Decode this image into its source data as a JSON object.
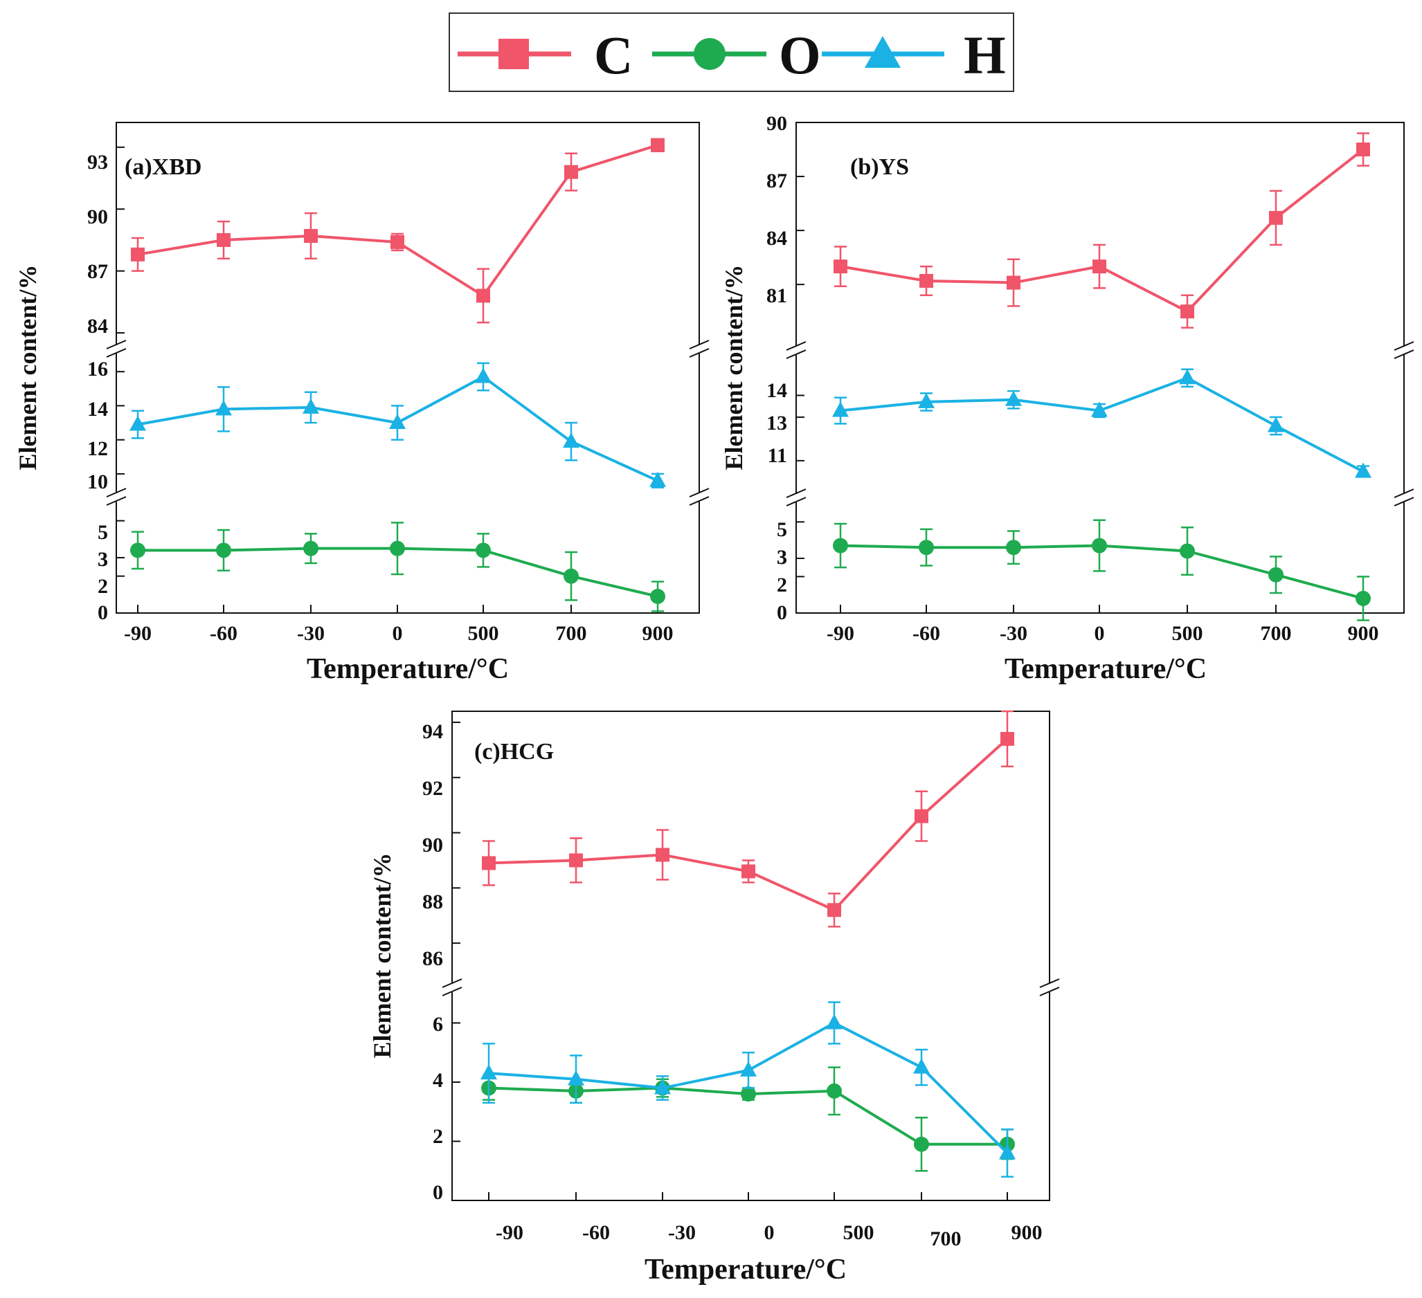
{
  "colors": {
    "C": "#f0556a",
    "O": "#1eab4f",
    "H": "#1ab2e4",
    "axis": "#111111"
  },
  "legend": [
    {
      "key": "C",
      "label": "C",
      "marker": "square-marker"
    },
    {
      "key": "O",
      "label": "O",
      "marker": "circle-marker"
    },
    {
      "key": "H",
      "label": "H",
      "marker": "triangle-marker"
    }
  ],
  "chart_data": [
    {
      "type": "line",
      "title": "(a)XBD",
      "xlabel": "Temperature/°C",
      "ylabel": "Element content/%",
      "categories": [
        "-90",
        "-60",
        "-30",
        "0",
        "500",
        "700",
        "900"
      ],
      "segments": [
        {
          "ylim": [
            83.5,
            94.2
          ],
          "ticks": [
            "84",
            "87",
            "90",
            "93"
          ]
        },
        {
          "ylim": [
            8.9,
            16.9
          ],
          "ticks": [
            "10",
            "12",
            "14",
            "16"
          ]
        },
        {
          "ylim": [
            0,
            6
          ],
          "ticks": [
            "0",
            "2",
            "3",
            "3",
            "5"
          ]
        }
      ],
      "series": [
        {
          "name": "C",
          "segment": 0,
          "values": [
            87.8,
            88.5,
            88.7,
            88.4,
            85.8,
            91.8,
            93.1
          ],
          "errors": [
            0.8,
            0.9,
            1.1,
            0.4,
            1.3,
            0.9,
            0.3
          ]
        },
        {
          "name": "O",
          "segment": 2,
          "values": [
            3.4,
            3.4,
            3.5,
            3.5,
            3.4,
            2.0,
            0.9
          ],
          "errors": [
            1.0,
            1.1,
            0.8,
            1.4,
            0.9,
            1.3,
            0.8
          ]
        },
        {
          "name": "H",
          "segment": 1,
          "values": [
            12.9,
            13.8,
            13.9,
            13.0,
            15.7,
            11.9,
            9.6
          ],
          "errors": [
            0.8,
            1.3,
            0.9,
            1.0,
            0.8,
            1.1,
            0.4
          ]
        }
      ]
    },
    {
      "type": "line",
      "title": "(b)YS",
      "xlabel": "Temperature/°C",
      "ylabel": "Element content/%",
      "categories": [
        "-90",
        "-60",
        "-30",
        "0",
        "500",
        "700",
        "900"
      ],
      "segments": [
        {
          "ylim": [
            77.7,
            90.0
          ],
          "ticks": [
            "81",
            "84",
            "87",
            "90"
          ]
        },
        {
          "ylim": [
            9.5,
            15.7
          ],
          "ticks": [
            "11",
            "13",
            "14"
          ]
        },
        {
          "ylim": [
            0,
            6
          ],
          "ticks": [
            "0",
            "2",
            "3",
            "3",
            "5"
          ]
        }
      ],
      "series": [
        {
          "name": "C",
          "segment": 0,
          "values": [
            82.0,
            81.2,
            81.1,
            82.0,
            79.5,
            84.7,
            88.5
          ],
          "errors": [
            1.1,
            0.8,
            1.3,
            1.2,
            0.9,
            1.5,
            0.9
          ]
        },
        {
          "name": "O",
          "segment": 2,
          "values": [
            3.7,
            3.6,
            3.6,
            3.7,
            3.4,
            2.1,
            0.8
          ],
          "errors": [
            1.2,
            1.0,
            0.9,
            1.4,
            1.3,
            1.0,
            1.2
          ]
        },
        {
          "name": "H",
          "segment": 1,
          "values": [
            13.3,
            13.7,
            13.8,
            13.3,
            14.8,
            12.6,
            10.5
          ],
          "errors": [
            0.6,
            0.4,
            0.4,
            0.3,
            0.4,
            0.4,
            0.25
          ]
        }
      ]
    },
    {
      "type": "line",
      "title": "(c)HCG",
      "xlabel": "Temperature/°C",
      "ylabel": "Element content/%",
      "categories": [
        "-90",
        "-60",
        "-30",
        "0",
        "500",
        "700",
        "900"
      ],
      "segments": [
        {
          "ylim": [
            84.7,
            94.4
          ],
          "ticks": [
            "86",
            "88",
            "90",
            "92",
            "94"
          ]
        },
        {
          "ylim": [
            0,
            6.9
          ],
          "ticks": [
            "0",
            "2",
            "4",
            "6"
          ]
        }
      ],
      "series": [
        {
          "name": "C",
          "segment": 0,
          "values": [
            88.9,
            89.0,
            89.2,
            88.6,
            87.2,
            90.6,
            93.4
          ],
          "errors": [
            0.8,
            0.8,
            0.9,
            0.4,
            0.6,
            0.9,
            1.0
          ]
        },
        {
          "name": "O",
          "segment": 1,
          "values": [
            3.8,
            3.7,
            3.8,
            3.6,
            3.7,
            1.9,
            1.9
          ],
          "errors": [
            0.4,
            0.4,
            0.3,
            0.2,
            0.8,
            0.9,
            0.5
          ]
        },
        {
          "name": "H",
          "segment": 1,
          "values": [
            4.3,
            4.1,
            3.8,
            4.4,
            6.0,
            4.5,
            1.6
          ],
          "errors": [
            1.0,
            0.8,
            0.4,
            0.6,
            0.7,
            0.6,
            0.8
          ]
        }
      ]
    }
  ]
}
